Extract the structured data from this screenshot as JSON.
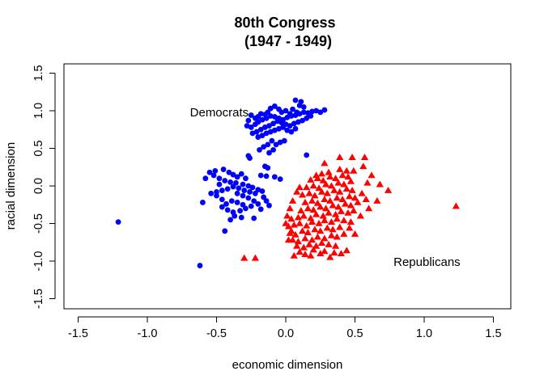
{
  "chart_data": {
    "type": "scatter",
    "title_line1": "80th Congress",
    "title_line2": "(1947 - 1949)",
    "xlabel": "economic dimension",
    "ylabel": "racial dimension",
    "xlim": [
      -1.6,
      1.6
    ],
    "ylim": [
      -1.6,
      1.6
    ],
    "xticks": [
      -1.5,
      -1.0,
      -0.5,
      0.0,
      0.5,
      1.0,
      1.5
    ],
    "xtick_labels": [
      "-1.5",
      "-1.0",
      "-0.5",
      "0.0",
      "0.5",
      "1.0",
      "1.5"
    ],
    "yticks": [
      -1.5,
      -1.0,
      -0.5,
      0.0,
      0.5,
      1.0,
      1.5
    ],
    "ytick_labels": [
      "-1.5",
      "-1.0",
      "-0.5",
      "0.0",
      "0.5",
      "1.0",
      "1.5"
    ],
    "grid": false,
    "annotations": [
      {
        "text": "Democrats",
        "x": -0.48,
        "y": 0.98
      },
      {
        "text": "Republicans",
        "x": 1.02,
        "y": -1.01
      }
    ],
    "series": [
      {
        "marker": "circle",
        "color": "#0000ff",
        "points": [
          [
            0.07,
            1.14
          ],
          [
            0.11,
            1.12
          ],
          [
            0.13,
            1.05
          ],
          [
            0.1,
            1.07
          ],
          [
            0.05,
            1.02
          ],
          [
            0.08,
            0.98
          ],
          [
            0.03,
            0.96
          ],
          [
            0.0,
            1.0
          ],
          [
            -0.03,
            0.98
          ],
          [
            -0.05,
            1.02
          ],
          [
            -0.08,
            1.06
          ],
          [
            -0.11,
            1.03
          ],
          [
            -0.13,
            0.98
          ],
          [
            -0.15,
            0.95
          ],
          [
            -0.18,
            0.96
          ],
          [
            -0.2,
            0.92
          ],
          [
            -0.22,
            0.9
          ],
          [
            -0.25,
            0.94
          ],
          [
            -0.27,
            0.87
          ],
          [
            -0.28,
            0.8
          ],
          [
            -0.25,
            0.78
          ],
          [
            -0.22,
            0.82
          ],
          [
            -0.2,
            0.85
          ],
          [
            -0.17,
            0.88
          ],
          [
            -0.14,
            0.9
          ],
          [
            -0.11,
            0.93
          ],
          [
            -0.08,
            0.92
          ],
          [
            -0.05,
            0.9
          ],
          [
            -0.02,
            0.88
          ],
          [
            0.01,
            0.91
          ],
          [
            0.04,
            0.93
          ],
          [
            0.07,
            0.94
          ],
          [
            0.1,
            0.96
          ],
          [
            0.13,
            0.98
          ],
          [
            0.16,
            0.97
          ],
          [
            0.19,
            0.99
          ],
          [
            0.22,
            1.0
          ],
          [
            0.25,
            0.98
          ],
          [
            0.28,
            1.01
          ],
          [
            0.18,
            0.93
          ],
          [
            0.15,
            0.9
          ],
          [
            0.12,
            0.87
          ],
          [
            0.09,
            0.85
          ],
          [
            0.06,
            0.83
          ],
          [
            0.03,
            0.8
          ],
          [
            0.0,
            0.82
          ],
          [
            -0.03,
            0.84
          ],
          [
            -0.06,
            0.86
          ],
          [
            -0.09,
            0.83
          ],
          [
            -0.12,
            0.8
          ],
          [
            -0.15,
            0.78
          ],
          [
            -0.18,
            0.75
          ],
          [
            -0.21,
            0.72
          ],
          [
            -0.24,
            0.7
          ],
          [
            -0.2,
            0.65
          ],
          [
            -0.17,
            0.67
          ],
          [
            -0.14,
            0.7
          ],
          [
            -0.11,
            0.72
          ],
          [
            -0.08,
            0.74
          ],
          [
            -0.05,
            0.76
          ],
          [
            -0.02,
            0.78
          ],
          [
            0.01,
            0.74
          ],
          [
            0.04,
            0.72
          ],
          [
            0.07,
            0.76
          ],
          [
            -0.1,
            0.6
          ],
          [
            -0.13,
            0.55
          ],
          [
            -0.16,
            0.52
          ],
          [
            -0.19,
            0.48
          ],
          [
            -0.07,
            0.55
          ],
          [
            -0.04,
            0.58
          ],
          [
            -0.01,
            0.6
          ],
          [
            -0.12,
            0.44
          ],
          [
            -0.09,
            0.48
          ],
          [
            0.15,
            0.41
          ],
          [
            -0.27,
            0.4
          ],
          [
            -0.26,
            0.37
          ],
          [
            -0.15,
            0.26
          ],
          [
            -0.13,
            0.24
          ],
          [
            -0.18,
            0.14
          ],
          [
            -0.14,
            0.13
          ],
          [
            -0.08,
            0.12
          ],
          [
            -0.04,
            0.09
          ],
          [
            -0.45,
            0.22
          ],
          [
            -0.41,
            0.18
          ],
          [
            -0.38,
            0.15
          ],
          [
            -0.35,
            0.12
          ],
          [
            -0.32,
            0.16
          ],
          [
            -0.29,
            0.1
          ],
          [
            -0.51,
            0.2
          ],
          [
            -0.55,
            0.18
          ],
          [
            -0.52,
            0.14
          ],
          [
            -0.58,
            0.1
          ],
          [
            -0.48,
            0.1
          ],
          [
            -0.44,
            0.07
          ],
          [
            -0.4,
            0.05
          ],
          [
            -0.36,
            0.04
          ],
          [
            -0.31,
            0.02
          ],
          [
            -0.27,
            0.0
          ],
          [
            -0.24,
            -0.02
          ],
          [
            -0.2,
            -0.05
          ],
          [
            -0.17,
            -0.07
          ],
          [
            -0.22,
            -0.1
          ],
          [
            -0.26,
            -0.08
          ],
          [
            -0.3,
            -0.06
          ],
          [
            -0.34,
            -0.03
          ],
          [
            -0.38,
            -0.01
          ],
          [
            -0.42,
            -0.04
          ],
          [
            -0.46,
            -0.06
          ],
          [
            -0.5,
            -0.08
          ],
          [
            -0.54,
            -0.1
          ],
          [
            -0.48,
            0.02
          ],
          [
            -0.35,
            -0.1
          ],
          [
            -0.31,
            -0.13
          ],
          [
            -0.27,
            -0.16
          ],
          [
            -0.23,
            -0.2
          ],
          [
            -0.2,
            -0.24
          ],
          [
            -0.25,
            -0.27
          ],
          [
            -0.29,
            -0.3
          ],
          [
            -0.33,
            -0.33
          ],
          [
            -0.38,
            -0.35
          ],
          [
            -0.42,
            -0.32
          ],
          [
            -0.46,
            -0.28
          ],
          [
            -0.43,
            -0.24
          ],
          [
            -0.39,
            -0.2
          ],
          [
            -0.35,
            -0.22
          ],
          [
            -0.31,
            -0.25
          ],
          [
            -0.16,
            -0.15
          ],
          [
            -0.14,
            -0.2
          ],
          [
            -0.12,
            -0.26
          ],
          [
            -0.18,
            -0.31
          ],
          [
            -0.37,
            -0.4
          ],
          [
            -0.32,
            -0.42
          ],
          [
            -0.4,
            -0.45
          ],
          [
            -0.46,
            -0.18
          ],
          [
            -0.5,
            -0.13
          ],
          [
            -0.6,
            -0.22
          ],
          [
            -0.23,
            -0.43
          ],
          [
            -0.44,
            -0.6
          ],
          [
            -1.21,
            -0.48
          ],
          [
            -0.62,
            -1.06
          ]
        ]
      },
      {
        "marker": "triangle",
        "color": "#ff0000",
        "points": [
          [
            0.32,
            -0.95
          ],
          [
            0.18,
            -0.93
          ],
          [
            0.25,
            -0.9
          ],
          [
            0.14,
            -0.91
          ],
          [
            0.1,
            -0.88
          ],
          [
            0.06,
            -0.93
          ],
          [
            0.2,
            -0.85
          ],
          [
            0.28,
            -0.87
          ],
          [
            0.35,
            -0.89
          ],
          [
            0.4,
            -0.9
          ],
          [
            0.44,
            -0.86
          ],
          [
            0.08,
            -0.8
          ],
          [
            0.13,
            -0.82
          ],
          [
            0.17,
            -0.78
          ],
          [
            0.22,
            -0.8
          ],
          [
            0.26,
            -0.76
          ],
          [
            0.31,
            -0.78
          ],
          [
            0.36,
            -0.8
          ],
          [
            0.05,
            -0.72
          ],
          [
            0.09,
            -0.74
          ],
          [
            0.14,
            -0.7
          ],
          [
            0.19,
            -0.72
          ],
          [
            0.23,
            -0.68
          ],
          [
            0.28,
            -0.7
          ],
          [
            0.33,
            -0.66
          ],
          [
            0.37,
            -0.68
          ],
          [
            0.42,
            -0.64
          ],
          [
            0.03,
            -0.63
          ],
          [
            0.07,
            -0.65
          ],
          [
            0.12,
            -0.6
          ],
          [
            0.16,
            -0.62
          ],
          [
            0.21,
            -0.58
          ],
          [
            0.25,
            -0.6
          ],
          [
            0.3,
            -0.56
          ],
          [
            0.34,
            -0.58
          ],
          [
            0.39,
            -0.55
          ],
          [
            0.46,
            -0.56
          ],
          [
            0.02,
            -0.54
          ],
          [
            0.06,
            -0.52
          ],
          [
            0.1,
            -0.5
          ],
          [
            0.15,
            -0.53
          ],
          [
            0.19,
            -0.48
          ],
          [
            0.24,
            -0.5
          ],
          [
            0.28,
            -0.46
          ],
          [
            0.33,
            -0.48
          ],
          [
            0.37,
            -0.44
          ],
          [
            0.42,
            -0.46
          ],
          [
            0.04,
            -0.44
          ],
          [
            0.09,
            -0.42
          ],
          [
            0.13,
            -0.4
          ],
          [
            0.18,
            -0.43
          ],
          [
            0.22,
            -0.38
          ],
          [
            0.27,
            -0.4
          ],
          [
            0.31,
            -0.36
          ],
          [
            0.36,
            -0.38
          ],
          [
            0.4,
            -0.34
          ],
          [
            0.45,
            -0.36
          ],
          [
            0.49,
            -0.33
          ],
          [
            0.11,
            -0.33
          ],
          [
            0.16,
            -0.3
          ],
          [
            0.2,
            -0.32
          ],
          [
            0.25,
            -0.28
          ],
          [
            0.29,
            -0.3
          ],
          [
            0.34,
            -0.26
          ],
          [
            0.38,
            -0.28
          ],
          [
            0.43,
            -0.24
          ],
          [
            0.47,
            -0.26
          ],
          [
            0.52,
            -0.22
          ],
          [
            0.14,
            -0.22
          ],
          [
            0.19,
            -0.2
          ],
          [
            0.23,
            -0.23
          ],
          [
            0.28,
            -0.18
          ],
          [
            0.32,
            -0.2
          ],
          [
            0.37,
            -0.16
          ],
          [
            0.41,
            -0.18
          ],
          [
            0.46,
            -0.14
          ],
          [
            0.5,
            -0.16
          ],
          [
            0.12,
            -0.12
          ],
          [
            0.17,
            -0.1
          ],
          [
            0.21,
            -0.13
          ],
          [
            0.26,
            -0.08
          ],
          [
            0.3,
            -0.1
          ],
          [
            0.35,
            -0.06
          ],
          [
            0.39,
            -0.08
          ],
          [
            0.44,
            -0.04
          ],
          [
            0.48,
            -0.06
          ],
          [
            0.55,
            -0.1
          ],
          [
            0.15,
            -0.02
          ],
          [
            0.2,
            0.0
          ],
          [
            0.24,
            -0.03
          ],
          [
            0.29,
            0.02
          ],
          [
            0.33,
            0.0
          ],
          [
            0.38,
            0.04
          ],
          [
            0.42,
            0.02
          ],
          [
            0.47,
            0.06
          ],
          [
            0.18,
            0.08
          ],
          [
            0.23,
            0.1
          ],
          [
            0.27,
            0.07
          ],
          [
            0.32,
            0.12
          ],
          [
            0.36,
            0.1
          ],
          [
            0.41,
            0.14
          ],
          [
            0.45,
            0.12
          ],
          [
            0.26,
            0.16
          ],
          [
            0.31,
            0.18
          ],
          [
            0.22,
            0.14
          ],
          [
            0.39,
            0.22
          ],
          [
            0.44,
            0.2
          ],
          [
            0.49,
            0.2
          ],
          [
            0.56,
            0.26
          ],
          [
            0.62,
            0.14
          ],
          [
            0.59,
            0.04
          ],
          [
            0.68,
            0.02
          ],
          [
            0.74,
            -0.06
          ],
          [
            0.66,
            -0.2
          ],
          [
            0.58,
            -0.18
          ],
          [
            0.6,
            -0.3
          ],
          [
            0.54,
            -0.4
          ],
          [
            0.48,
            0.38
          ],
          [
            0.39,
            0.38
          ],
          [
            0.28,
            0.3
          ],
          [
            0.57,
            0.38
          ],
          [
            0.1,
            -0.02
          ],
          [
            0.08,
            -0.08
          ],
          [
            0.05,
            -0.2
          ],
          [
            0.03,
            -0.3
          ],
          [
            0.01,
            -0.4
          ],
          [
            0.0,
            -0.5
          ],
          [
            0.04,
            -0.6
          ],
          [
            0.02,
            -0.72
          ],
          [
            0.47,
            -0.48
          ],
          [
            0.5,
            -0.64
          ],
          [
            -0.22,
            -0.96
          ],
          [
            -0.3,
            -0.96
          ],
          [
            1.23,
            -0.27
          ]
        ]
      }
    ]
  }
}
